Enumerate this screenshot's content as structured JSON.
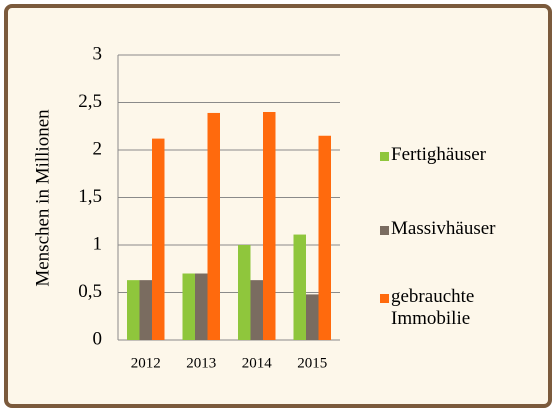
{
  "chart_data": {
    "type": "bar",
    "y_label": "Menschen in Millionen",
    "categories": [
      "2012",
      "2013",
      "2014",
      "2015"
    ],
    "series": [
      {
        "name": "Fertighäuser",
        "color": "#8fc63c",
        "values": [
          0.63,
          0.7,
          1.0,
          1.11
        ]
      },
      {
        "name": "Massivhäuser",
        "color": "#7a6c60",
        "values": [
          0.63,
          0.7,
          0.63,
          0.48
        ]
      },
      {
        "name": "gebrauchte Immobilie",
        "color": "#ff6a0d",
        "values": [
          2.12,
          2.39,
          2.4,
          2.15
        ]
      }
    ],
    "ylim": [
      0,
      3
    ],
    "yticks": [
      0,
      {
        "value": 0.5,
        "label": "0,5"
      },
      1,
      {
        "value": 1.5,
        "label": "1,5"
      },
      2,
      {
        "value": 2.5,
        "label": "2,5"
      },
      3
    ],
    "grid": true,
    "legend": "right"
  }
}
